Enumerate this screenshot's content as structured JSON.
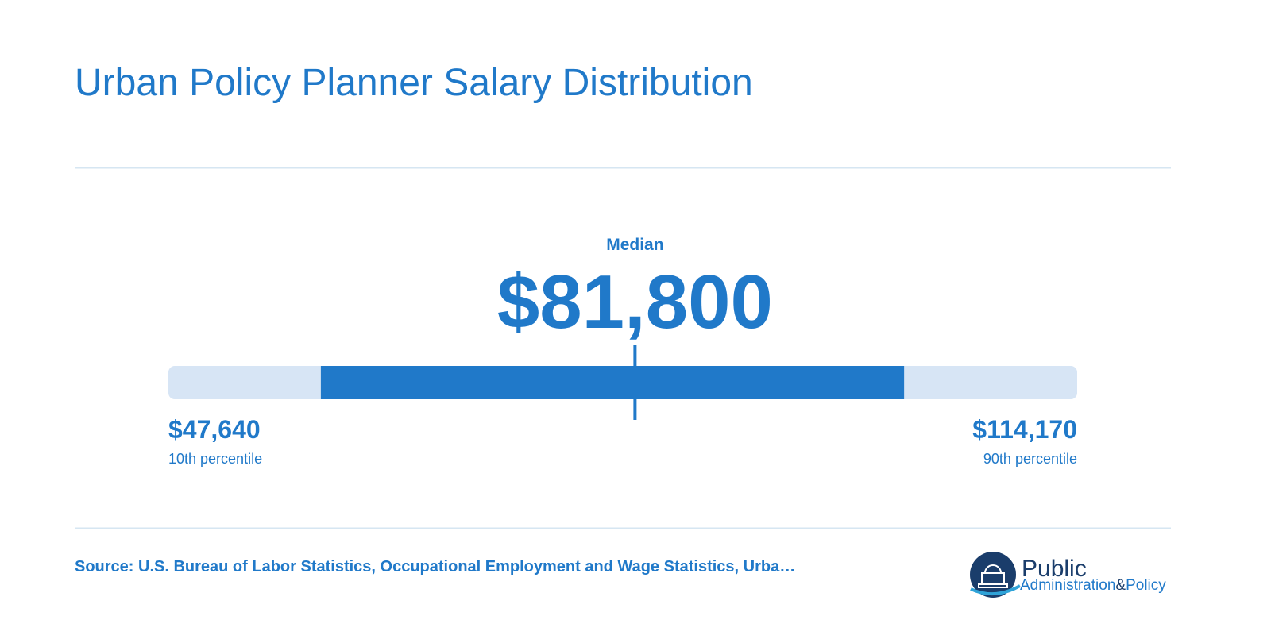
{
  "header": {
    "title": "Urban Policy Planner Salary Distribution"
  },
  "salary": {
    "median_label": "Median",
    "median": {
      "value": 81800,
      "label": "$81,800"
    },
    "low": {
      "value": 47640,
      "label": "$47,640",
      "caption": "10th percentile"
    },
    "high": {
      "value": 114170,
      "label": "$114,170",
      "caption": "90th percentile"
    },
    "band": [
      58800,
      101500
    ]
  },
  "footer": {
    "source": "Source: U.S. Bureau of Labor Statistics, Occupational Employment and Wage Statistics, Urba…",
    "logo": {
      "line1": "Public",
      "line2a": "Administration",
      "amp": "&",
      "line2b": "Policy"
    }
  }
}
